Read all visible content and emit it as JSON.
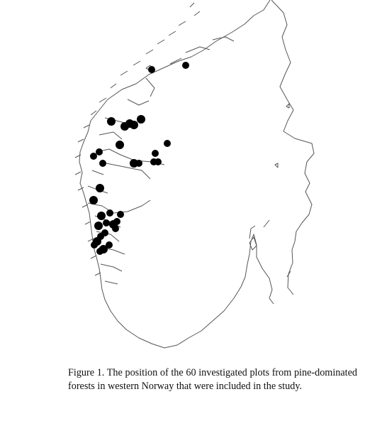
{
  "caption": "Figure 1. The position of the 60 investigated plots from pine-dominated forests in western Norway that were included in the study.",
  "map": {
    "region": "Southern Norway",
    "coastline_color": "#555555",
    "plot_marker_color": "#000000",
    "plot_count": 60
  }
}
